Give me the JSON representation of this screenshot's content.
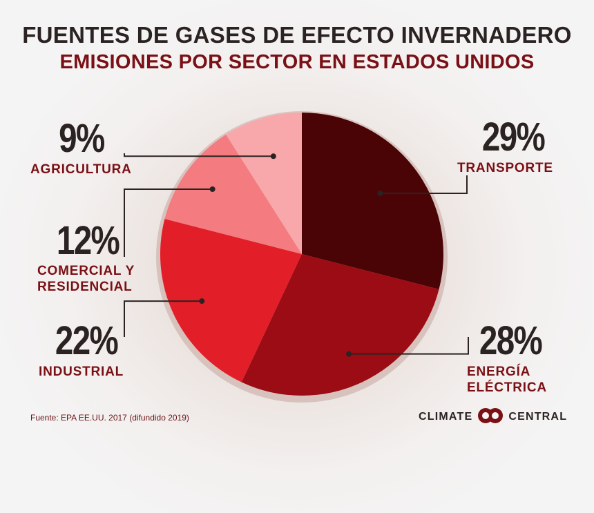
{
  "title": "FUENTES DE GASES DE EFECTO INVERNADERO",
  "subtitle": "EMISIONES POR SECTOR EN ESTADOS UNIDOS",
  "source": "Fuente: EPA EE.UU. 2017 (difundido 2019)",
  "brand": {
    "left": "CLIMATE",
    "right": "CENTRAL",
    "logo_icon": "interlocking-circles-logo"
  },
  "chart_data": {
    "type": "pie",
    "title": "FUENTES DE GASES DE EFECTO INVERNADERO",
    "subtitle": "EMISIONES POR SECTOR EN ESTADOS UNIDOS",
    "unit": "%",
    "slices": [
      {
        "pct_label": "29%",
        "label_lines": [
          "TRANSPORTE"
        ],
        "value": 29,
        "color": "#4a0406"
      },
      {
        "pct_label": "28%",
        "label_lines": [
          "ENERGÍA",
          "ELÉCTRICA"
        ],
        "value": 28,
        "color": "#9c0c14"
      },
      {
        "pct_label": "22%",
        "label_lines": [
          "INDUSTRIAL"
        ],
        "value": 22,
        "color": "#e21e28"
      },
      {
        "pct_label": "12%",
        "label_lines": [
          "COMERCIAL Y",
          "RESIDENCIAL"
        ],
        "value": 12,
        "color": "#f47b80"
      },
      {
        "pct_label": "9%",
        "label_lines": [
          "AGRICULTURA"
        ],
        "value": 9,
        "color": "#f8a8ab"
      }
    ]
  }
}
